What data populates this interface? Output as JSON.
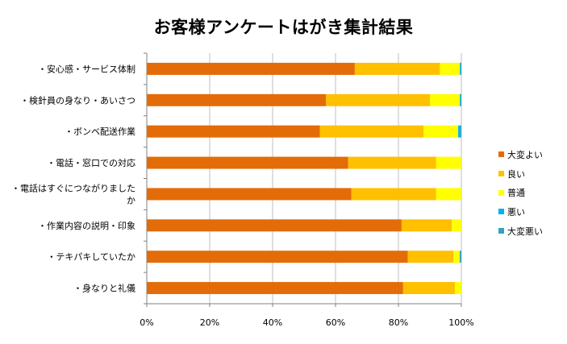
{
  "colors": {
    "series": [
      "#E36C09",
      "#FFC000",
      "#FFFF00",
      "#00B0F0",
      "#31A6B8"
    ],
    "grid": "#bfbfbf",
    "axis": "#808080"
  },
  "chart_data": {
    "type": "bar",
    "orientation": "horizontal",
    "stacked": "percent",
    "title": "お客様アンケートはがき集計結果",
    "categories": [
      "・安心感・サービス体制",
      "・検針員の身なり・あいさつ",
      "・ボンベ配送作業",
      "・電話・窓口での対応",
      "・電話はすぐにつながりました か",
      "・作業内容の説明・印象",
      "・テキパキしていたか",
      "・身なりと礼儀"
    ],
    "series": [
      {
        "name": "大変よい",
        "values": [
          66,
          57,
          55,
          64,
          65,
          81,
          83,
          81.5
        ]
      },
      {
        "name": "良い",
        "values": [
          27,
          33,
          33,
          28,
          27,
          16,
          14.5,
          16.5
        ]
      },
      {
        "name": "普通",
        "values": [
          6.3,
          9.5,
          11,
          8,
          8,
          3,
          2,
          2
        ]
      },
      {
        "name": "悪い",
        "values": [
          0.2,
          0.2,
          0.7,
          0,
          0,
          0,
          0,
          0
        ]
      },
      {
        "name": "大変悪い",
        "values": [
          0.3,
          0.3,
          0.3,
          0,
          0,
          0,
          0.5,
          0
        ]
      }
    ],
    "xlim": [
      0,
      100
    ],
    "xticks": [
      "0%",
      "20%",
      "40%",
      "60%",
      "80%",
      "100%"
    ],
    "grid": true,
    "legend_position": "right"
  }
}
